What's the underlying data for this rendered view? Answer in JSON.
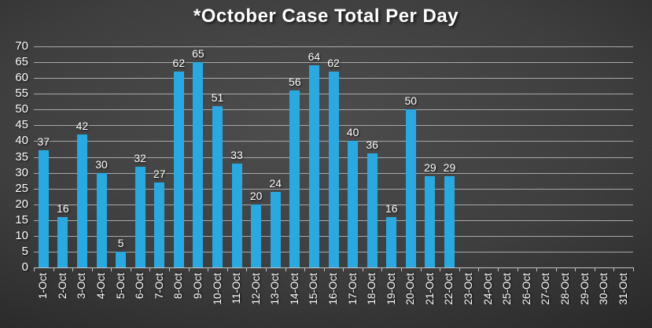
{
  "chart_data": {
    "type": "bar",
    "title": "*October Case Total Per Day",
    "categories": [
      "1-Oct",
      "2-Oct",
      "3-Oct",
      "4-Oct",
      "5-Oct",
      "6-Oct",
      "7-Oct",
      "8-Oct",
      "9-Oct",
      "10-Oct",
      "11-Oct",
      "12-Oct",
      "13-Oct",
      "14-Oct",
      "15-Oct",
      "16-Oct",
      "17-Oct",
      "18-Oct",
      "19-Oct",
      "20-Oct",
      "21-Oct",
      "22-Oct",
      "23-Oct",
      "24-Oct",
      "25-Oct",
      "26-Oct",
      "27-Oct",
      "28-Oct",
      "29-Oct",
      "30-Oct",
      "31-Oct"
    ],
    "values": [
      37,
      16,
      42,
      30,
      5,
      32,
      27,
      62,
      65,
      51,
      33,
      20,
      24,
      56,
      64,
      62,
      40,
      36,
      16,
      50,
      29,
      29,
      null,
      null,
      null,
      null,
      null,
      null,
      null,
      null,
      null
    ],
    "xlabel": "",
    "ylabel": "",
    "ylim": [
      0,
      70
    ],
    "ytick_step": 5,
    "grid": true,
    "legend_position": "none",
    "data_labels": true,
    "colors": {
      "bar": "#29A9E2",
      "gridline": "#a8a8a8",
      "axis_line": "#c4c4c4",
      "text": "#ffffff",
      "title": "#ffffff"
    }
  }
}
